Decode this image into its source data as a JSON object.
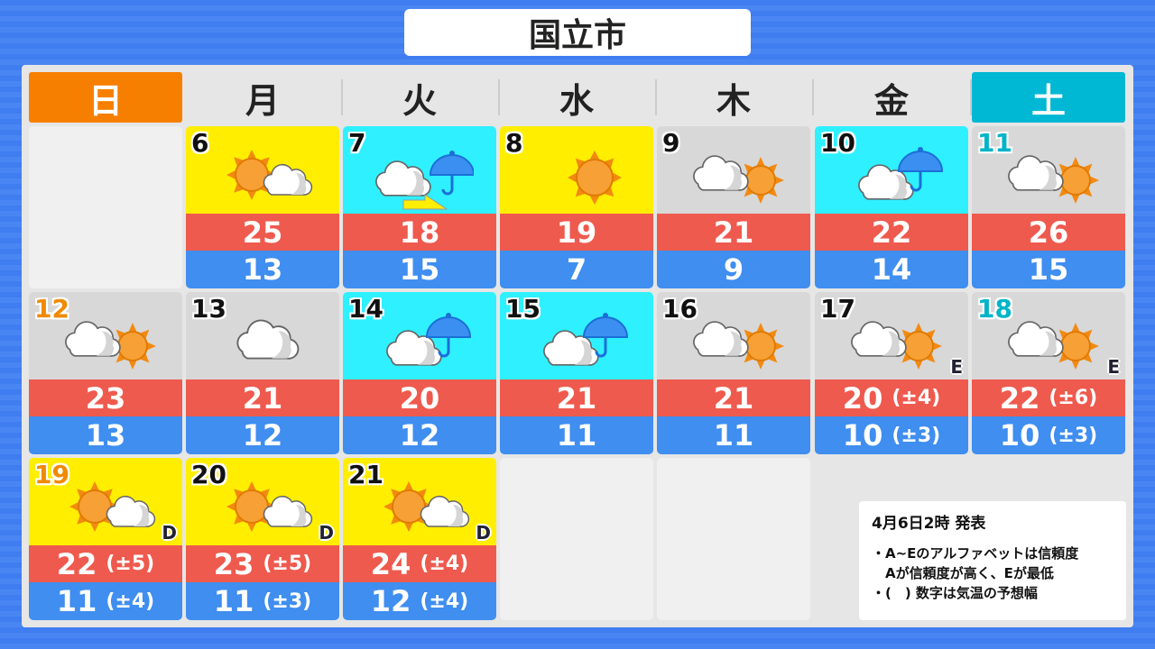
{
  "title": "国立市",
  "weekdays": [
    "日",
    "月",
    "火",
    "水",
    "木",
    "金",
    "土"
  ],
  "colors": {
    "sunday": "#f77f00",
    "saturday": "#00b8d4",
    "high": "#ef5a4e",
    "low": "#3f8ef0",
    "sunny_bg": "#ffee00",
    "rain_bg": "#2ff0ff",
    "cloud_bg": "#d8d8d8"
  },
  "weeks": [
    [
      null,
      {
        "day": "6",
        "weather": "sun-then-cloud",
        "high": "25",
        "low": "13"
      },
      {
        "day": "7",
        "weather": "cloud-then-rain",
        "high": "18",
        "low": "15"
      },
      {
        "day": "8",
        "weather": "sun",
        "high": "19",
        "low": "7"
      },
      {
        "day": "9",
        "weather": "cloud-then-sun",
        "high": "21",
        "low": "9"
      },
      {
        "day": "10",
        "weather": "cloud-with-rain",
        "high": "22",
        "low": "14"
      },
      {
        "day": "11",
        "weather": "cloud-then-sun",
        "high": "26",
        "low": "15"
      }
    ],
    [
      {
        "day": "12",
        "weather": "cloud-then-sun",
        "high": "23",
        "low": "13"
      },
      {
        "day": "13",
        "weather": "cloud",
        "high": "21",
        "low": "12"
      },
      {
        "day": "14",
        "weather": "cloud-with-rain",
        "high": "20",
        "low": "12"
      },
      {
        "day": "15",
        "weather": "cloud-with-rain",
        "high": "21",
        "low": "11"
      },
      {
        "day": "16",
        "weather": "cloud-then-sun",
        "high": "21",
        "low": "11"
      },
      {
        "day": "17",
        "weather": "cloud-then-sun",
        "high": "20",
        "high_range": "(±4)",
        "low": "10",
        "low_range": "(±3)",
        "reliability": "E"
      },
      {
        "day": "18",
        "weather": "cloud-then-sun",
        "high": "22",
        "high_range": "(±6)",
        "low": "10",
        "low_range": "(±3)",
        "reliability": "E"
      }
    ],
    [
      {
        "day": "19",
        "weather": "sun-then-cloud",
        "high": "22",
        "high_range": "(±5)",
        "low": "11",
        "low_range": "(±4)",
        "reliability": "D"
      },
      {
        "day": "20",
        "weather": "sun-then-cloud",
        "high": "23",
        "high_range": "(±5)",
        "low": "11",
        "low_range": "(±3)",
        "reliability": "D"
      },
      {
        "day": "21",
        "weather": "sun-then-cloud",
        "high": "24",
        "high_range": "(±4)",
        "low": "12",
        "low_range": "(±4)",
        "reliability": "D"
      },
      null,
      null,
      null,
      null
    ]
  ],
  "note": {
    "issued": "4月6日2時 発表",
    "lines": [
      "・A~Eのアルファベットは信頼度",
      "　Aが信頼度が高く、Eが最低",
      "・(　) 数字は気温の予想幅"
    ]
  }
}
